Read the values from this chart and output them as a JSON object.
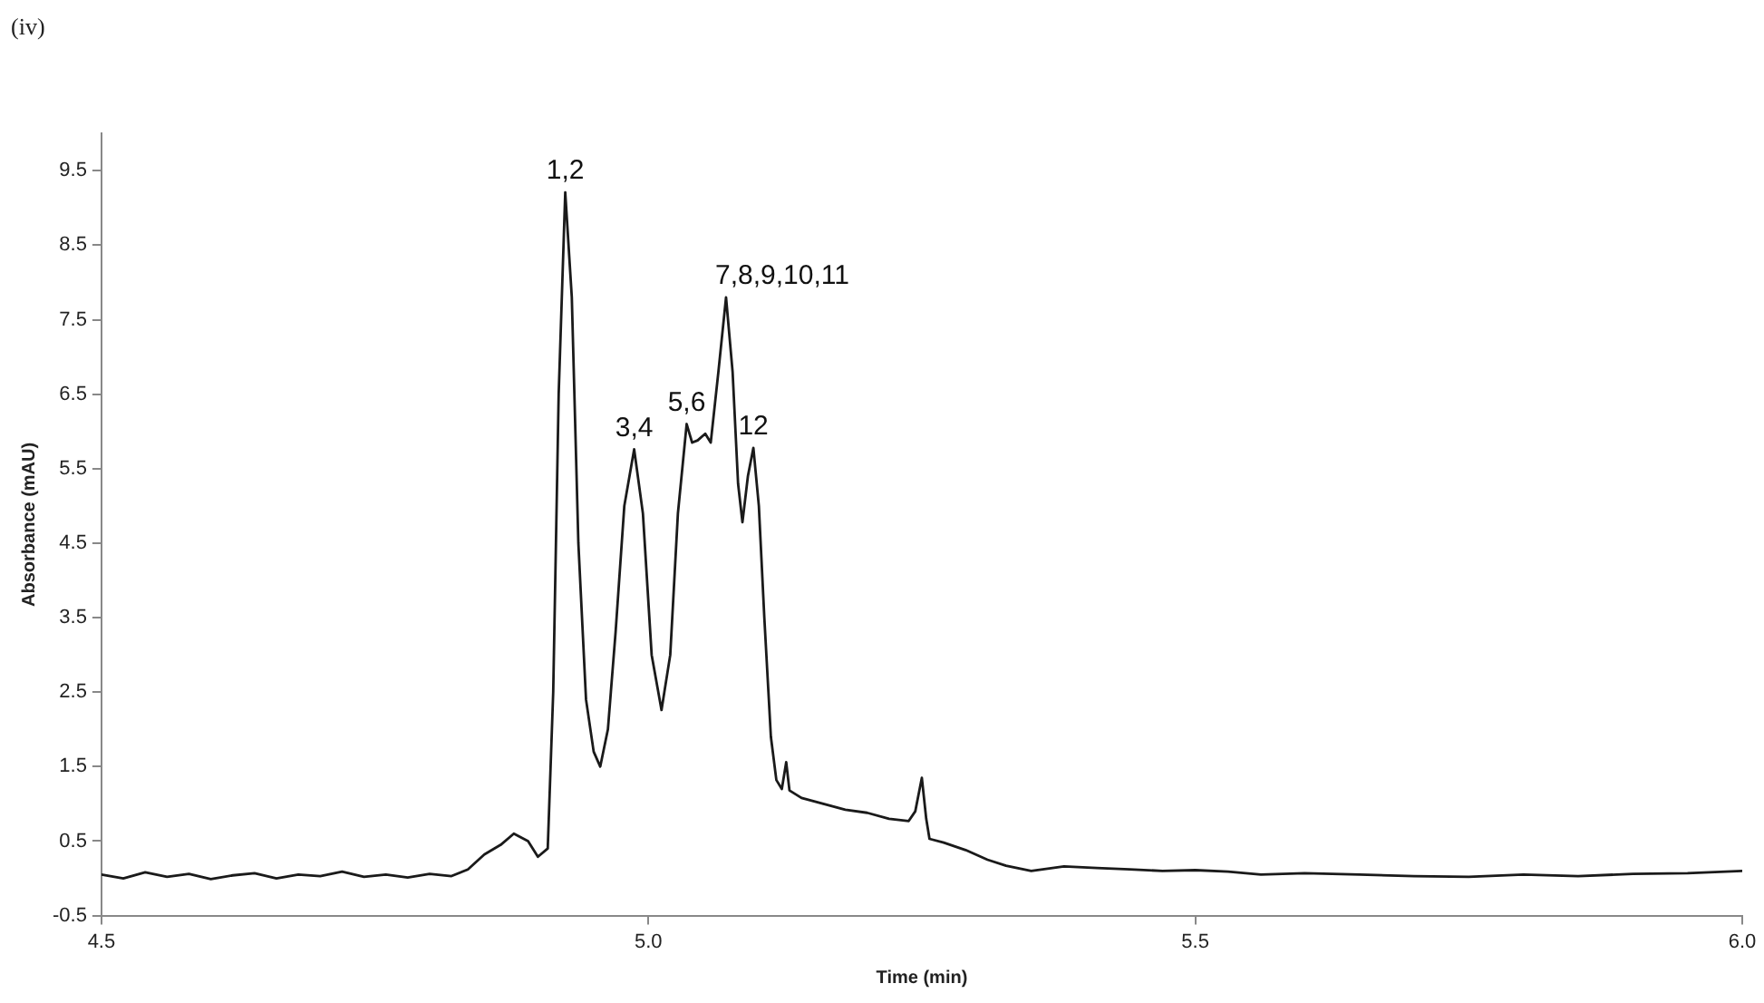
{
  "chart_data": {
    "type": "line",
    "title": "(iv)",
    "xlabel": "Time (min)",
    "ylabel": "Absorbance (mAU)",
    "xlim": [
      4.5,
      6.0
    ],
    "xticks": [
      4.5,
      {
        "value": 5.0,
        "label": "5.0"
      },
      5.5,
      {
        "value": 6.0,
        "label": "6.0"
      }
    ],
    "ylim": [
      -0.5,
      10
    ],
    "yticks": [
      -0.5,
      0.5,
      1.5,
      2.5,
      3.5,
      4.5,
      5.5,
      6.5,
      7.5,
      8.5,
      9.5
    ],
    "grid": false,
    "legend": false,
    "marker": "none",
    "line_style": "solid",
    "annotations": [
      {
        "text": "1,2",
        "x": 4.924,
        "y": 9.21
      },
      {
        "text": "3,4",
        "x": 4.987,
        "y": 5.76
      },
      {
        "text": "5,6",
        "x": 5.035,
        "y": 6.1
      },
      {
        "text": "7,8,9,10,11",
        "x": 5.071,
        "y": 7.8
      },
      {
        "text": "12",
        "x": 5.096,
        "y": 5.78
      }
    ],
    "series": [
      {
        "color": "#1a1a1a",
        "x": [
          4.5,
          4.52,
          4.54,
          4.56,
          4.58,
          4.6,
          4.62,
          4.64,
          4.66,
          4.68,
          4.7,
          4.72,
          4.74,
          4.76,
          4.78,
          4.8,
          4.82,
          4.835,
          4.85,
          4.865,
          4.877,
          4.89,
          4.899,
          4.908,
          4.913,
          4.918,
          4.924,
          4.93,
          4.936,
          4.943,
          4.95,
          4.956,
          4.963,
          4.97,
          4.978,
          4.987,
          4.995,
          5.003,
          5.012,
          5.02,
          5.027,
          5.035,
          5.04,
          5.045,
          5.052,
          5.057,
          5.064,
          5.071,
          5.077,
          5.082,
          5.086,
          5.091,
          5.096,
          5.101,
          5.106,
          5.112,
          5.117,
          5.122,
          5.126,
          5.129,
          5.14,
          5.16,
          5.18,
          5.2,
          5.22,
          5.238,
          5.244,
          5.25,
          5.254,
          5.257,
          5.27,
          5.29,
          5.31,
          5.327,
          5.35,
          5.38,
          5.41,
          5.44,
          5.47,
          5.5,
          5.53,
          5.56,
          5.6,
          5.65,
          5.7,
          5.75,
          5.8,
          5.85,
          5.9,
          5.95,
          6.0
        ],
        "values": [
          0.05,
          0.0,
          0.08,
          0.02,
          0.06,
          -0.01,
          0.04,
          0.07,
          0.0,
          0.05,
          0.03,
          0.09,
          0.02,
          0.05,
          0.01,
          0.06,
          0.03,
          0.12,
          0.32,
          0.45,
          0.6,
          0.5,
          0.29,
          0.4,
          2.5,
          6.5,
          9.21,
          7.8,
          4.5,
          2.4,
          1.7,
          1.5,
          2.0,
          3.3,
          5.0,
          5.76,
          4.9,
          3.0,
          2.26,
          3.0,
          4.9,
          6.1,
          5.85,
          5.88,
          5.97,
          5.85,
          6.8,
          7.8,
          6.8,
          5.3,
          4.78,
          5.4,
          5.78,
          5.0,
          3.5,
          1.9,
          1.32,
          1.2,
          1.56,
          1.18,
          1.08,
          1.0,
          0.92,
          0.88,
          0.8,
          0.77,
          0.9,
          1.35,
          0.8,
          0.53,
          0.48,
          0.38,
          0.25,
          0.17,
          0.1,
          0.16,
          0.14,
          0.12,
          0.1,
          0.11,
          0.09,
          0.05,
          0.07,
          0.05,
          0.03,
          0.02,
          0.05,
          0.03,
          0.06,
          0.07,
          0.1
        ]
      }
    ]
  }
}
